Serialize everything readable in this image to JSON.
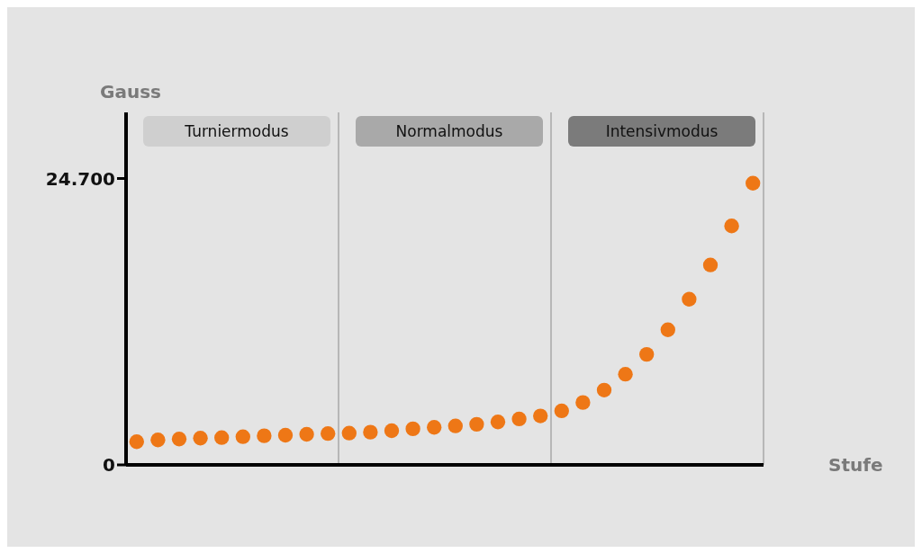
{
  "chart_data": {
    "type": "scatter",
    "xlabel": "Stufe",
    "ylabel": "Gauss",
    "categories": [
      null,
      null,
      null,
      null,
      null,
      null,
      null,
      null,
      null,
      null,
      null,
      null,
      null,
      null,
      null,
      null,
      null,
      null,
      null,
      null,
      null,
      null,
      null,
      null,
      null,
      null,
      null,
      null,
      null,
      null
    ],
    "series": [
      {
        "color": "#ee7716",
        "values": [
          2000,
          2150,
          2230,
          2310,
          2350,
          2430,
          2510,
          2560,
          2640,
          2700,
          2740,
          2820,
          2950,
          3110,
          3240,
          3360,
          3500,
          3700,
          3960,
          4220,
          4660,
          5380,
          6450,
          7820,
          9530,
          11650,
          14290,
          17240,
          20610,
          24290
        ]
      }
    ],
    "ylim": [
      0,
      30400
    ],
    "yticks": [
      0,
      {
        "value": 24700,
        "label": "24.700"
      }
    ],
    "annotations": [
      "Turniermodus",
      "Normalmodus",
      "Intensivmodus"
    ],
    "marker": "circle",
    "grid": false
  }
}
